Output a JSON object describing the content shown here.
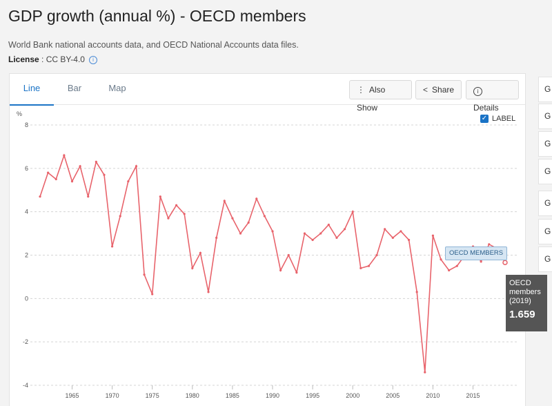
{
  "header": {
    "title": "GDP growth (annual %) - OECD members",
    "subtitle": "World Bank national accounts data, and OECD National Accounts data files.",
    "license_key": "License",
    "license_value": " : CC BY-4.0"
  },
  "tabs": [
    {
      "label": "Line",
      "active": true
    },
    {
      "label": "Bar",
      "active": false
    },
    {
      "label": "Map",
      "active": false
    }
  ],
  "toolbar": {
    "also_show": "Also Show",
    "share": "Share",
    "details": "Details"
  },
  "label_toggle": {
    "text": "LABEL",
    "checked": true
  },
  "tooltip": {
    "name_line1": "OECD",
    "name_line2": "members",
    "year": "(2019)",
    "value": "1.659"
  },
  "series_label": "OECD MEMBERS",
  "right_rail": {
    "items": [
      "G",
      "G",
      "G",
      "G",
      "G",
      "G",
      "G"
    ]
  },
  "colors": {
    "line": "#e8636b",
    "accent": "#1a73c6"
  },
  "chart_data": {
    "type": "line",
    "title": "GDP growth (annual %) - OECD members",
    "xlabel": "",
    "ylabel": "%",
    "ylim": [
      -4,
      8
    ],
    "yticks": [
      -4,
      -2,
      0,
      2,
      4,
      6,
      8
    ],
    "xticks": [
      1965,
      1970,
      1975,
      1980,
      1985,
      1990,
      1995,
      2000,
      2005,
      2010,
      2015
    ],
    "grid": true,
    "x": [
      1961,
      1962,
      1963,
      1964,
      1965,
      1966,
      1967,
      1968,
      1969,
      1970,
      1971,
      1972,
      1973,
      1974,
      1975,
      1976,
      1977,
      1978,
      1979,
      1980,
      1981,
      1982,
      1983,
      1984,
      1985,
      1986,
      1987,
      1988,
      1989,
      1990,
      1991,
      1992,
      1993,
      1994,
      1995,
      1996,
      1997,
      1998,
      1999,
      2000,
      2001,
      2002,
      2003,
      2004,
      2005,
      2006,
      2007,
      2008,
      2009,
      2010,
      2011,
      2012,
      2013,
      2014,
      2015,
      2016,
      2017,
      2018,
      2019
    ],
    "series": [
      {
        "name": "OECD members",
        "values": [
          4.7,
          5.8,
          5.5,
          6.6,
          5.4,
          6.1,
          4.7,
          6.3,
          5.7,
          2.4,
          3.8,
          5.4,
          6.1,
          1.1,
          0.2,
          4.7,
          3.7,
          4.3,
          3.9,
          1.4,
          2.1,
          0.3,
          2.8,
          4.5,
          3.7,
          3.0,
          3.5,
          4.6,
          3.8,
          3.1,
          1.3,
          2.0,
          1.2,
          3.0,
          2.7,
          3.0,
          3.4,
          2.8,
          3.2,
          4.0,
          1.4,
          1.5,
          2.0,
          3.2,
          2.8,
          3.1,
          2.7,
          0.3,
          -3.4,
          2.9,
          1.8,
          1.3,
          1.5,
          2.0,
          2.4,
          1.7,
          2.5,
          2.3,
          1.659
        ]
      }
    ]
  }
}
